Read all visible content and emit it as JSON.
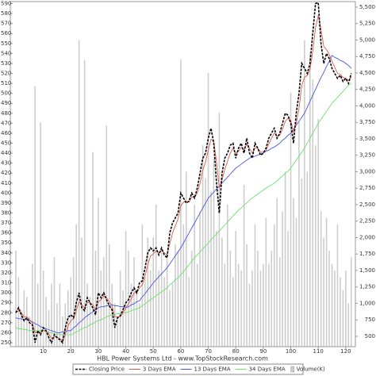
{
  "chart_data": {
    "type": "line",
    "title": "HBL Power Systems Ltd - www.TopStockResearch.com",
    "x": [
      0,
      1,
      2,
      3,
      4,
      5,
      6,
      7,
      8,
      9,
      10,
      11,
      12,
      13,
      14,
      15,
      16,
      17,
      18,
      19,
      20,
      21,
      22,
      23,
      24,
      25,
      26,
      27,
      28,
      29,
      30,
      31,
      32,
      33,
      34,
      35,
      36,
      37,
      38,
      39,
      40,
      41,
      42,
      43,
      44,
      45,
      46,
      47,
      48,
      49,
      50,
      51,
      52,
      53,
      54,
      55,
      56,
      57,
      58,
      59,
      60,
      61,
      62,
      63,
      64,
      65,
      66,
      67,
      68,
      69,
      70,
      71,
      72,
      73,
      74,
      75,
      76,
      77,
      78,
      79,
      80,
      81,
      82,
      83,
      84,
      85,
      86,
      87,
      88,
      89,
      90,
      91,
      92,
      93,
      94,
      95,
      96,
      97,
      98,
      99,
      100,
      101,
      102,
      103,
      104,
      105,
      106,
      107,
      108,
      109,
      110,
      111,
      112,
      113,
      114,
      115,
      116,
      117,
      118,
      119,
      120,
      121,
      122
    ],
    "xlim": [
      -2,
      123.5
    ],
    "xticks": [
      10,
      20,
      30,
      40,
      50,
      60,
      70,
      80,
      90,
      100,
      110,
      120
    ],
    "ylim": [
      246,
      592
    ],
    "yticks": [
      250,
      260,
      270,
      280,
      290,
      300,
      310,
      320,
      330,
      340,
      350,
      360,
      370,
      380,
      390,
      400,
      410,
      420,
      430,
      440,
      450,
      460,
      470,
      480,
      490,
      500,
      510,
      520,
      530,
      540,
      550,
      560,
      570,
      580,
      590
    ],
    "y2lim": [
      343,
      5584
    ],
    "y2ticks": [
      500,
      750,
      {
        "value": 1000,
        "label": "1,000"
      },
      {
        "value": 1250,
        "label": "1,250"
      },
      {
        "value": 1500,
        "label": "1,500"
      },
      {
        "value": 1750,
        "label": "1,750"
      },
      {
        "value": 2000,
        "label": "2,000"
      },
      {
        "value": 2250,
        "label": "2,250"
      },
      {
        "value": 2500,
        "label": "2,500"
      },
      {
        "value": 2750,
        "label": "2,750"
      },
      {
        "value": 3000,
        "label": "3,000"
      },
      {
        "value": 3250,
        "label": "3,250"
      },
      {
        "value": 3500,
        "label": "3,500"
      },
      {
        "value": 3750,
        "label": "3,750"
      },
      {
        "value": 4000,
        "label": "4,000"
      },
      {
        "value": 4250,
        "label": "4,250"
      },
      {
        "value": 4500,
        "label": "4,500"
      },
      {
        "value": 4750,
        "label": "4,750"
      },
      {
        "value": 5000,
        "label": "5,000"
      },
      {
        "value": 5250,
        "label": "5,250"
      },
      {
        "value": 5500,
        "label": "5,500"
      }
    ],
    "series": [
      {
        "name": "Closing Price",
        "color": "#000000",
        "style": "dashed",
        "values": [
          280,
          285,
          278,
          272,
          275,
          270,
          268,
          250,
          262,
          258,
          265,
          262,
          255,
          250,
          258,
          255,
          253,
          250,
          265,
          275,
          278,
          275,
          290,
          300,
          285,
          282,
          295,
          290,
          285,
          278,
          300,
          295,
          300,
          293,
          287,
          283,
          265,
          275,
          277,
          283,
          290,
          293,
          300,
          305,
          300,
          310,
          312,
          325,
          340,
          345,
          342,
          345,
          338,
          345,
          338,
          335,
          360,
          370,
          375,
          380,
          400,
          395,
          390,
          392,
          400,
          395,
          405,
          420,
          435,
          440,
          455,
          465,
          450,
          410,
          380,
          420,
          435,
          440,
          448,
          450,
          435,
          445,
          450,
          440,
          455,
          440,
          435,
          450,
          445,
          438,
          440,
          445,
          455,
          460,
          465,
          455,
          460,
          470,
          480,
          478,
          470,
          450,
          480,
          500,
          530,
          525,
          520,
          530,
          560,
          590,
          591,
          550,
          530,
          540,
          535,
          525,
          520,
          515,
          518,
          512,
          515,
          510,
          520
        ]
      },
      {
        "name": "3 Days EMA",
        "color": "#e0584a",
        "values": [
          280,
          282,
          280,
          276,
          276,
          273,
          270,
          260,
          261,
          260,
          262,
          262,
          259,
          254,
          256,
          256,
          254,
          252,
          258,
          267,
          272,
          274,
          282,
          291,
          288,
          285,
          290,
          290,
          288,
          283,
          291,
          293,
          297,
          295,
          291,
          287,
          276,
          276,
          276,
          280,
          285,
          289,
          294,
          300,
          300,
          305,
          308,
          317,
          328,
          337,
          339,
          342,
          340,
          343,
          340,
          338,
          349,
          360,
          367,
          374,
          387,
          391,
          391,
          391,
          396,
          396,
          400,
          410,
          423,
          431,
          443,
          454,
          452,
          431,
          405,
          413,
          424,
          432,
          440,
          445,
          440,
          442,
          446,
          443,
          449,
          445,
          440,
          445,
          445,
          441,
          441,
          443,
          449,
          455,
          460,
          457,
          458,
          464,
          472,
          475,
          473,
          461,
          470,
          485,
          508,
          516,
          518,
          524,
          542,
          566,
          578,
          564,
          547,
          544,
          539,
          532,
          526,
          520,
          519,
          516,
          515,
          513,
          516
        ]
      },
      {
        "name": "13 Days EMA",
        "color": "#4a55e0",
        "values": [
          275,
          274,
          274,
          273,
          273,
          272,
          271,
          269,
          268,
          266,
          265,
          264,
          263,
          262,
          261,
          260,
          260,
          261,
          261,
          262,
          262,
          265,
          267,
          270,
          272,
          275,
          277,
          279,
          281,
          283,
          285,
          286,
          286,
          287,
          287,
          288,
          287,
          287,
          286,
          286,
          285,
          286,
          288,
          289,
          291,
          292,
          296,
          299,
          303,
          306,
          310,
          313,
          316,
          319,
          322,
          325,
          329,
          333,
          337,
          341,
          345,
          350,
          355,
          360,
          365,
          370,
          375,
          380,
          385,
          390,
          395,
          398,
          401,
          404,
          407,
          410,
          413,
          416,
          419,
          422,
          425,
          427,
          429,
          431,
          433,
          435,
          436,
          437,
          438,
          439,
          440,
          442,
          443,
          445,
          446,
          448,
          450,
          453,
          455,
          458,
          460,
          464,
          468,
          472,
          476,
          480,
          486,
          492,
          498,
          504,
          510,
          516,
          521,
          527,
          532,
          538,
          536,
          535,
          533,
          532,
          530,
          528,
          525
        ]
      },
      {
        "name": "34 Days EMA",
        "color": "#6be36b",
        "values": [
          265,
          264,
          264,
          263,
          263,
          262,
          262,
          262,
          262,
          262,
          262,
          261,
          260,
          260,
          259,
          258,
          258,
          258,
          258,
          258,
          258,
          259,
          261,
          262,
          264,
          265,
          266,
          268,
          269,
          271,
          272,
          273,
          274,
          276,
          277,
          278,
          278,
          279,
          279,
          280,
          280,
          281,
          282,
          283,
          284,
          285,
          287,
          289,
          291,
          293,
          295,
          297,
          299,
          301,
          303,
          305,
          308,
          310,
          313,
          315,
          318,
          321,
          325,
          328,
          332,
          335,
          338,
          341,
          344,
          347,
          350,
          353,
          356,
          359,
          362,
          365,
          368,
          371,
          374,
          377,
          380,
          383,
          385,
          388,
          390,
          393,
          395,
          397,
          399,
          401,
          403,
          405,
          407,
          408,
          410,
          412,
          415,
          417,
          420,
          422,
          425,
          429,
          433,
          437,
          441,
          445,
          450,
          455,
          460,
          465,
          470,
          474,
          478,
          482,
          486,
          490,
          493,
          496,
          499,
          502,
          505,
          508,
          510
        ]
      },
      {
        "name": "Volume(K)",
        "color": "#cccccc",
        "axis": "y2",
        "type": "bar",
        "values": [
          1800,
          1400,
          900,
          1200,
          1100,
          800,
          1600,
          4300,
          1300,
          3750,
          1500,
          1100,
          900,
          1300,
          1700,
          1000,
          1300,
          800,
          1000,
          1200,
          1400,
          1700,
          2200,
          5000,
          2000,
          4700,
          1300,
          1100,
          3300,
          1800,
          2600,
          1500,
          1700,
          3700,
          1900,
          1300,
          1000,
          800,
          1500,
          1200,
          2100,
          1800,
          1300,
          1700,
          1200,
          1000,
          2200,
          1400,
          2000,
          1500,
          2000,
          2500,
          1500,
          1800,
          1400,
          1700,
          1200,
          1300,
          1900,
          1800,
          4700,
          2200,
          3000,
          1400,
          1800,
          2500,
          1600,
          2400,
          3400,
          2900,
          4500,
          2700,
          3200,
          2100,
          3900,
          2000,
          1600,
          2500,
          1800,
          1400,
          2100,
          1600,
          1500,
          2800,
          1900,
          1300,
          1500,
          2200,
          1800,
          1500,
          1600,
          2300,
          1600,
          1800,
          2200,
          2600,
          1700,
          2400,
          3000,
          2100,
          4200,
          2600,
          2300,
          3750,
          2900,
          5000,
          3000,
          4800,
          4400,
          3400,
          3800,
          2400,
          2000,
          2300,
          1800,
          1600,
          1500,
          2200,
          1400,
          1200,
          1500,
          1000,
          1700
        ]
      }
    ]
  }
}
